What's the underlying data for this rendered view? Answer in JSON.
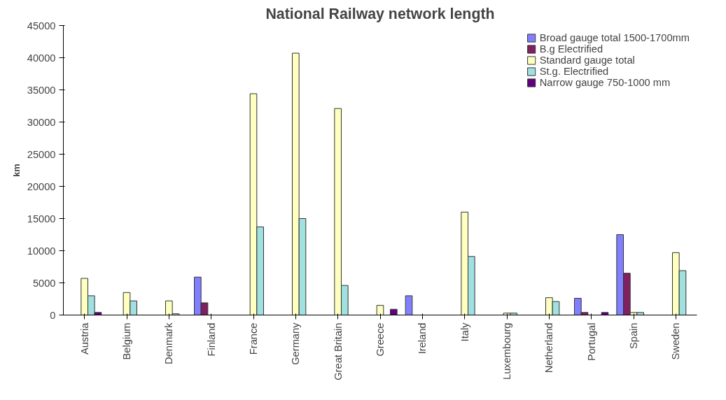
{
  "chart_data": {
    "type": "bar",
    "title": "National Railway network length",
    "ylabel": "km",
    "categories": [
      "Austria",
      "Belgium",
      "Denmark",
      "Finland",
      "France",
      "Germany",
      "Great Britain",
      "Greece",
      "Ireland",
      "Italy",
      "Luxembourg",
      "Netherland",
      "Portugal",
      "Spain",
      "Sweden"
    ],
    "series": [
      {
        "name": "Broad gauge total 1500-1700mm",
        "color": "#8080ff",
        "values": [
          null,
          null,
          null,
          5900,
          null,
          null,
          null,
          null,
          3000,
          null,
          null,
          null,
          2600,
          12500,
          null
        ]
      },
      {
        "name": "B.g Electrified",
        "color": "#802060",
        "values": [
          null,
          null,
          null,
          1900,
          null,
          null,
          null,
          null,
          null,
          null,
          null,
          null,
          400,
          6500,
          null
        ]
      },
      {
        "name": "Standard gauge total",
        "color": "#ffffc0",
        "values": [
          5700,
          3500,
          2200,
          null,
          34400,
          40700,
          32100,
          1500,
          null,
          16000,
          300,
          2700,
          null,
          400,
          9700
        ]
      },
      {
        "name": "St.g. Electrified",
        "color": "#a0e0e0",
        "values": [
          3000,
          2200,
          200,
          null,
          13700,
          15000,
          4600,
          null,
          null,
          9100,
          300,
          2100,
          null,
          400,
          6900
        ]
      },
      {
        "name": "Narrow gauge 750-1000 mm",
        "color": "#600080",
        "values": [
          400,
          null,
          null,
          null,
          null,
          null,
          null,
          900,
          null,
          null,
          null,
          null,
          400,
          null,
          null
        ]
      }
    ],
    "ylim": [
      0,
      45000
    ],
    "yticks": [
      0,
      5000,
      10000,
      15000,
      20000,
      25000,
      30000,
      35000,
      40000,
      45000
    ],
    "grid": false,
    "legend": "top right"
  }
}
